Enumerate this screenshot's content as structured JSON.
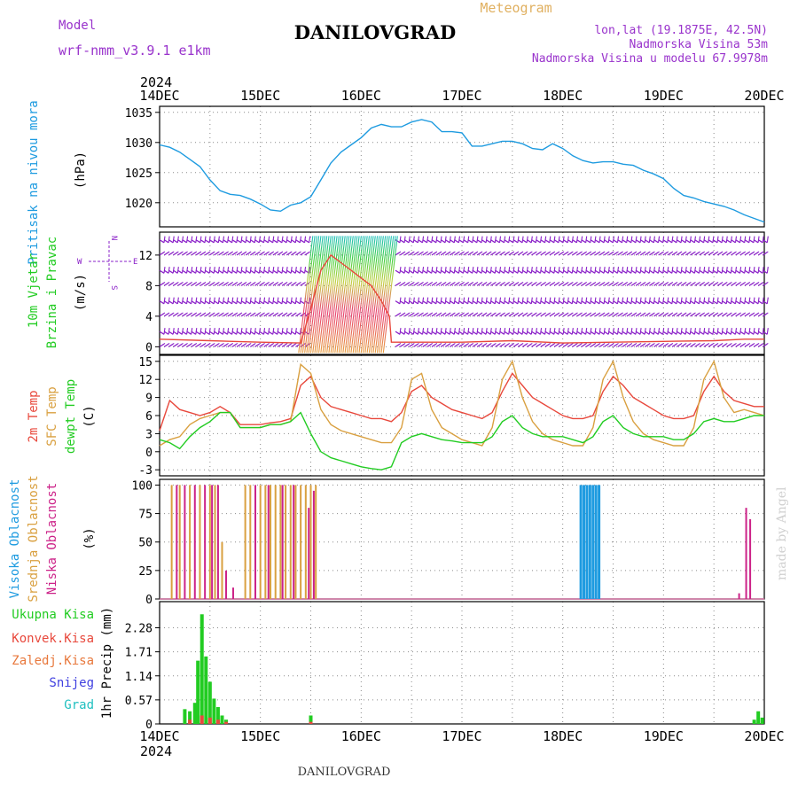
{
  "header": {
    "model_label": "Model",
    "model_value": "wrf-nmm_v3.9.1 e1km",
    "title": "DANILOVGRAD",
    "meteogram_label": "Meteogram",
    "lonlat": "lon,lat (19.1875E, 42.5N)",
    "elevation": "Nadmorska Visina 53m",
    "model_elevation": "Nadmorska Visina u modelu 67.9978m",
    "footer_title": "DANILOVGRAD",
    "year": "2024",
    "watermark": "made by Angel"
  },
  "colors": {
    "pressure": "#1e9be0",
    "temp2m": "#e8483c",
    "sfc": "#d9a040",
    "dewpt": "#22cc22",
    "high_cloud": "#1e9be0",
    "mid_cloud": "#d9a040",
    "low_cloud": "#cc2288",
    "wind_barb": "#8a20c8",
    "precip_total": "#22cc22",
    "precip_conv": "#e8483c"
  },
  "x_axis": {
    "ticks": [
      "14DEC",
      "15DEC",
      "16DEC",
      "17DEC",
      "18DEC",
      "19DEC",
      "20DEC"
    ]
  },
  "chart_data": [
    {
      "type": "line",
      "id": "pressure",
      "ylabel_main": "Pritisak na nivou mora",
      "ylabel_unit": "(hPa)",
      "ylim": [
        1016,
        1036
      ],
      "yticks": [
        1020,
        1025,
        1030,
        1035
      ],
      "ytick_labels": [
        "1020",
        "1025",
        "1030",
        "1035"
      ],
      "grid": true,
      "series": [
        {
          "color_key": "pressure",
          "x": [
            0,
            0.1,
            0.2,
            0.3,
            0.4,
            0.5,
            0.6,
            0.7,
            0.8,
            0.9,
            1.0,
            1.1,
            1.2,
            1.3,
            1.4,
            1.5,
            1.6,
            1.7,
            1.8,
            1.9,
            2.0,
            2.1,
            2.2,
            2.3,
            2.4,
            2.5,
            2.6,
            2.7,
            2.8,
            2.9,
            3.0,
            3.1,
            3.2,
            3.3,
            3.4,
            3.5,
            3.6,
            3.7,
            3.8,
            3.9,
            4.0,
            4.1,
            4.2,
            4.3,
            4.4,
            4.5,
            4.6,
            4.7,
            4.8,
            4.9,
            5.0,
            5.1,
            5.2,
            5.3,
            5.4,
            5.5,
            5.6,
            5.7,
            5.8,
            5.9,
            6.0
          ],
          "values": [
            1029.6,
            1029.2,
            1028.4,
            1027.2,
            1026.0,
            1023.8,
            1022.0,
            1021.4,
            1021.2,
            1020.6,
            1019.8,
            1018.8,
            1018.6,
            1019.6,
            1020.0,
            1021.0,
            1023.8,
            1026.6,
            1028.4,
            1029.6,
            1030.8,
            1032.4,
            1033.0,
            1032.6,
            1032.6,
            1033.4,
            1033.8,
            1033.4,
            1031.8,
            1031.8,
            1031.6,
            1029.4,
            1029.4,
            1029.8,
            1030.2,
            1030.2,
            1029.8,
            1029.0,
            1028.8,
            1029.8,
            1029.0,
            1027.8,
            1027.0,
            1026.6,
            1026.8,
            1026.8,
            1026.4,
            1026.2,
            1025.4,
            1024.8,
            1024.0,
            1022.4,
            1021.2,
            1020.8,
            1020.2,
            1019.8,
            1019.4,
            1018.8,
            1018.0,
            1017.4,
            1016.8
          ]
        }
      ]
    },
    {
      "type": "barbs",
      "id": "wind",
      "ylabel_main": "10m Vjetar",
      "ylabel_sub": "Brzina i Pravac",
      "ylabel_unit": "(m/s)",
      "ylim": [
        -1,
        15
      ],
      "yticks": [
        0,
        4,
        8,
        12
      ],
      "ytick_labels": [
        "0",
        "4",
        "8",
        "12"
      ],
      "compass": {
        "n": "N",
        "s": "S",
        "e": "E",
        "w": "W"
      },
      "grid": true,
      "barb_rows": [
        0,
        2,
        4,
        6,
        8,
        10,
        12,
        14
      ],
      "strong_wind_window": [
        1.45,
        2.3
      ],
      "speed_series": {
        "x": [
          0,
          0.5,
          1.0,
          1.4,
          1.5,
          1.6,
          1.7,
          1.8,
          1.9,
          2.0,
          2.1,
          2.2,
          2.28,
          2.3,
          2.5,
          3.0,
          3.5,
          4.0,
          4.5,
          5.0,
          5.5,
          5.8,
          6.0
        ],
        "values": [
          1,
          0.8,
          0.6,
          0.5,
          5,
          10,
          12,
          11,
          10,
          9,
          8,
          6,
          4,
          0.6,
          0.6,
          0.6,
          0.8,
          0.5,
          0.6,
          0.7,
          0.8,
          1.0,
          1.0
        ]
      }
    },
    {
      "type": "line",
      "id": "temperature",
      "ylabel_main": "2m Temp",
      "ylabel_sub": "SFC Temp",
      "ylabel_sub2": "dewpt Temp",
      "ylabel_unit": "(C)",
      "ylim": [
        -4,
        16
      ],
      "yticks": [
        -3,
        0,
        3,
        6,
        9,
        12,
        15
      ],
      "ytick_labels": [
        "-3",
        "0",
        "3",
        "6",
        "9",
        "12",
        "15"
      ],
      "grid": true,
      "series": [
        {
          "name": "2m Temp",
          "color_key": "temp2m",
          "x": [
            0,
            0.1,
            0.2,
            0.3,
            0.4,
            0.5,
            0.6,
            0.7,
            0.8,
            0.9,
            1.0,
            1.1,
            1.2,
            1.3,
            1.4,
            1.5,
            1.6,
            1.7,
            1.8,
            1.9,
            2.0,
            2.1,
            2.2,
            2.3,
            2.4,
            2.5,
            2.6,
            2.7,
            2.8,
            2.9,
            3.0,
            3.1,
            3.2,
            3.3,
            3.4,
            3.5,
            3.6,
            3.7,
            3.8,
            3.9,
            4.0,
            4.1,
            4.2,
            4.3,
            4.4,
            4.5,
            4.6,
            4.7,
            4.8,
            4.9,
            5.0,
            5.1,
            5.2,
            5.3,
            5.4,
            5.5,
            5.6,
            5.7,
            5.8,
            5.9,
            6.0
          ],
          "values": [
            3.5,
            8.5,
            7.0,
            6.5,
            6.0,
            6.5,
            7.5,
            6.5,
            4.5,
            4.5,
            4.5,
            4.8,
            5.0,
            5.5,
            11.0,
            12.5,
            9.0,
            7.5,
            7.0,
            6.5,
            6.0,
            5.5,
            5.5,
            5.0,
            6.5,
            10.0,
            11.0,
            9.0,
            8.0,
            7.0,
            6.5,
            6.0,
            5.5,
            6.5,
            10.0,
            13.0,
            11.0,
            9.0,
            8.0,
            7.0,
            6.0,
            5.5,
            5.5,
            6.0,
            10.0,
            12.5,
            11.0,
            9.0,
            8.0,
            7.0,
            6.0,
            5.5,
            5.5,
            6.0,
            10.0,
            12.5,
            10.0,
            8.5,
            8.0,
            7.5,
            7.5
          ]
        },
        {
          "name": "SFC Temp",
          "color_key": "sfc",
          "x": [
            0,
            0.1,
            0.2,
            0.3,
            0.4,
            0.5,
            0.6,
            0.7,
            0.8,
            0.9,
            1.0,
            1.1,
            1.2,
            1.3,
            1.4,
            1.5,
            1.6,
            1.7,
            1.8,
            1.9,
            2.0,
            2.1,
            2.2,
            2.3,
            2.4,
            2.5,
            2.6,
            2.7,
            2.8,
            2.9,
            3.0,
            3.1,
            3.2,
            3.3,
            3.4,
            3.5,
            3.6,
            3.7,
            3.8,
            3.9,
            4.0,
            4.1,
            4.2,
            4.3,
            4.4,
            4.5,
            4.6,
            4.7,
            4.8,
            4.9,
            5.0,
            5.1,
            5.2,
            5.3,
            5.4,
            5.5,
            5.6,
            5.7,
            5.8,
            5.9,
            6.0
          ],
          "values": [
            1.0,
            2.0,
            2.5,
            4.5,
            5.5,
            6.0,
            6.5,
            6.5,
            4.0,
            4.0,
            4.0,
            4.5,
            4.5,
            5.0,
            14.5,
            13.0,
            7.0,
            4.5,
            3.5,
            3.0,
            2.5,
            2.0,
            1.5,
            1.5,
            4.0,
            12.0,
            13.0,
            7.0,
            4.0,
            3.0,
            2.0,
            1.5,
            1.0,
            4.0,
            12.0,
            15.0,
            9.0,
            5.0,
            3.0,
            2.0,
            1.5,
            1.0,
            1.0,
            4.0,
            12.0,
            15.0,
            9.0,
            5.0,
            3.0,
            2.0,
            1.5,
            1.0,
            1.0,
            4.0,
            12.0,
            15.0,
            9.0,
            6.5,
            7.0,
            6.5,
            6.0
          ]
        },
        {
          "name": "dewpt Temp",
          "color_key": "dewpt",
          "x": [
            0,
            0.1,
            0.2,
            0.3,
            0.4,
            0.5,
            0.6,
            0.7,
            0.8,
            0.9,
            1.0,
            1.1,
            1.2,
            1.3,
            1.4,
            1.5,
            1.6,
            1.7,
            1.8,
            1.9,
            2.0,
            2.1,
            2.2,
            2.3,
            2.4,
            2.5,
            2.6,
            2.7,
            2.8,
            2.9,
            3.0,
            3.1,
            3.2,
            3.3,
            3.4,
            3.5,
            3.6,
            3.7,
            3.8,
            3.9,
            4.0,
            4.1,
            4.2,
            4.3,
            4.4,
            4.5,
            4.6,
            4.7,
            4.8,
            4.9,
            5.0,
            5.1,
            5.2,
            5.3,
            5.4,
            5.5,
            5.6,
            5.7,
            5.8,
            5.9,
            6.0
          ],
          "values": [
            2.0,
            1.5,
            0.5,
            2.5,
            4.0,
            5.0,
            6.5,
            6.5,
            4.0,
            4.0,
            4.0,
            4.5,
            4.5,
            5.0,
            6.5,
            3.0,
            0.0,
            -1.0,
            -1.5,
            -2.0,
            -2.5,
            -2.8,
            -3.0,
            -2.5,
            1.5,
            2.5,
            3.0,
            2.5,
            2.0,
            1.8,
            1.5,
            1.5,
            1.5,
            2.5,
            5.0,
            6.0,
            4.0,
            3.0,
            2.5,
            2.5,
            2.5,
            2.0,
            1.5,
            2.5,
            5.0,
            6.0,
            4.0,
            3.0,
            2.5,
            2.5,
            2.5,
            2.0,
            2.0,
            3.0,
            5.0,
            5.5,
            5.0,
            5.0,
            5.5,
            6.0,
            6.0
          ]
        }
      ]
    },
    {
      "type": "bar",
      "id": "clouds",
      "ylabel_main": "Visoka Oblacnost",
      "ylabel_sub": "Srednja Oblacnost",
      "ylabel_sub2": "Niska Oblacnost",
      "ylabel_unit": "(%)",
      "ylim": [
        0,
        105
      ],
      "yticks": [
        0,
        25,
        50,
        75,
        100
      ],
      "ytick_labels": [
        "0",
        "25",
        "50",
        "75",
        "100"
      ],
      "grid": true,
      "series": [
        {
          "name": "Visoka Oblacnost",
          "color_key": "high_cloud",
          "x": [
            4.18,
            4.21,
            4.24,
            4.27,
            4.3,
            4.33,
            4.36
          ],
          "values": [
            100,
            100,
            100,
            100,
            100,
            100,
            100
          ]
        },
        {
          "name": "Srednja Oblacnost",
          "color_key": "mid_cloud",
          "x": [
            0.12,
            0.2,
            0.3,
            0.4,
            0.5,
            0.55,
            0.62,
            0.85,
            0.9,
            1.0,
            1.05,
            1.1,
            1.15,
            1.2,
            1.25,
            1.3,
            1.35,
            1.4,
            1.45,
            1.5,
            1.55
          ],
          "values": [
            100,
            100,
            100,
            100,
            100,
            100,
            50,
            100,
            100,
            100,
            100,
            100,
            100,
            100,
            100,
            100,
            100,
            100,
            100,
            100,
            100
          ]
        },
        {
          "name": "Niska Oblacnost",
          "color_key": "low_cloud",
          "x": [
            0.17,
            0.25,
            0.35,
            0.45,
            0.52,
            0.58,
            0.66,
            0.73,
            0.95,
            1.08,
            1.22,
            1.33,
            1.48,
            1.53,
            5.75,
            5.82,
            5.86
          ],
          "values": [
            100,
            100,
            100,
            100,
            100,
            100,
            25,
            10,
            100,
            100,
            100,
            100,
            80,
            95,
            5,
            80,
            70
          ]
        }
      ]
    },
    {
      "type": "bar",
      "id": "precip",
      "ylabel_main": "1hr Precip (mm)",
      "legend_labels": [
        "Ukupna Kisa",
        "Konvek.Kisa",
        "Zaledj.Kisa",
        "Snijeg",
        "Grad"
      ],
      "legend_colors": [
        "#22cc22",
        "#e8483c",
        "#e8783c",
        "#4040e0",
        "#20c0c0"
      ],
      "ylim": [
        0,
        2.9
      ],
      "yticks": [
        0,
        0.57,
        1.14,
        1.71,
        2.28
      ],
      "ytick_labels": [
        "0",
        "0.57",
        "1.14",
        "1.71",
        "2.28"
      ],
      "grid": true,
      "series": [
        {
          "name": "Ukupna Kisa",
          "color_key": "precip_total",
          "x": [
            0.25,
            0.3,
            0.35,
            0.38,
            0.42,
            0.46,
            0.5,
            0.54,
            0.58,
            0.62,
            0.66,
            1.5,
            5.9,
            5.94,
            5.98
          ],
          "values": [
            0.35,
            0.3,
            0.5,
            1.5,
            2.6,
            1.6,
            1.0,
            0.6,
            0.4,
            0.2,
            0.1,
            0.2,
            0.1,
            0.3,
            0.15
          ]
        },
        {
          "name": "Konvek.Kisa",
          "color_key": "precip_conv",
          "x": [
            0.3,
            0.42,
            0.5,
            0.58,
            0.66,
            1.5
          ],
          "values": [
            0.1,
            0.2,
            0.15,
            0.1,
            0.05,
            0.05
          ]
        }
      ]
    }
  ]
}
